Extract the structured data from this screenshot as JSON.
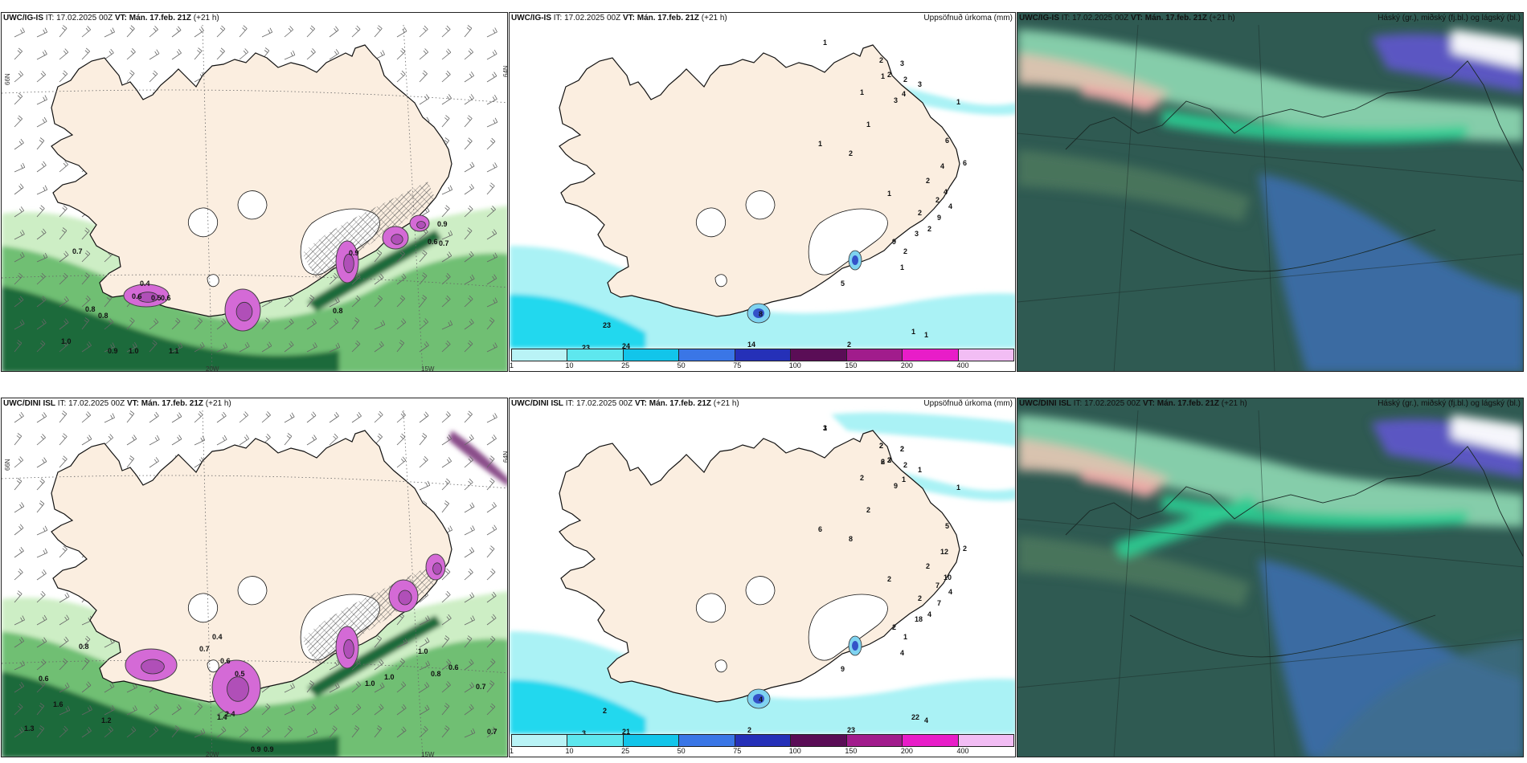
{
  "panels": [
    {
      "id": "top-left",
      "source": "UWC/IG-IS",
      "it_label": "IT: 17.02.2025 00Z",
      "vt_label": "VT: Mán. 17.feb. 21Z",
      "lead_label": "(+21 h)",
      "field_label": "",
      "kind": "wind",
      "values": [
        "0.4",
        "0.6",
        "0.5",
        "0.6",
        "0.8",
        "0.7",
        "0.9",
        "0.8",
        "1.0",
        "0.9",
        "0.7",
        "0.6",
        "1.1",
        "0.8",
        "1.0",
        "0.9"
      ],
      "axis_labels": [
        "20W",
        "15W",
        "66N",
        "64N"
      ]
    },
    {
      "id": "top-center",
      "source": "UWC/IG-IS",
      "it_label": "IT: 17.02.2025 00Z",
      "vt_label": "VT: Mán. 17.feb. 21Z",
      "lead_label": "(+21 h)",
      "field_label": "Uppsöfnuð úrkoma (mm)",
      "kind": "precip",
      "values": [
        "1",
        "2",
        "3",
        "2",
        "1",
        "2",
        "3",
        "4",
        "1",
        "3",
        "1",
        "1",
        "6",
        "1",
        "2",
        "6",
        "4",
        "2",
        "4",
        "1",
        "2",
        "4",
        "2",
        "9",
        "2",
        "3",
        "9",
        "2",
        "1",
        "5",
        "23",
        "14",
        "23",
        "23",
        "24",
        "2",
        "1",
        "1",
        "8"
      ]
    },
    {
      "id": "top-right",
      "source": "UWC/IG-IS",
      "it_label": "IT: 17.02.2025 00Z",
      "vt_label": "VT: Mán. 17.feb. 21Z",
      "lead_label": "(+21 h)",
      "field_label": "Háský (gr.), miðský (fj.bl.) og lágský (bl.)",
      "kind": "clouds"
    },
    {
      "id": "bottom-left",
      "source": "UWC/DINI ISL",
      "it_label": "IT: 17.02.2025 00Z",
      "vt_label": "VT: Mán. 17.feb. 21Z",
      "lead_label": "(+21 h)",
      "field_label": "",
      "kind": "wind",
      "values": [
        "0.8",
        "0.6",
        "0.7",
        "0.4",
        "0.6",
        "1.0",
        "0.8",
        "1.4",
        "1.0",
        "0.6",
        "0.7",
        "1.2",
        "0.9",
        "1.6",
        "2.4",
        "0.9",
        "0.7",
        "1.0",
        "1.3",
        "0.5"
      ],
      "axis_labels": [
        "20W",
        "15W",
        "66N",
        "64N"
      ]
    },
    {
      "id": "bottom-center",
      "source": "UWC/DINI ISL",
      "it_label": "IT: 17.02.2025 00Z",
      "vt_label": "VT: Mán. 17.feb. 21Z",
      "lead_label": "(+21 h)",
      "field_label": "Uppsöfnuð úrkoma (mm)",
      "kind": "precip",
      "values": [
        "1",
        "2",
        "2",
        "2",
        "2",
        "2",
        "1",
        "1",
        "2",
        "9",
        "1",
        "2",
        "5",
        "6",
        "8",
        "2",
        "12",
        "2",
        "10",
        "2",
        "7",
        "4",
        "2",
        "7",
        "4",
        "18",
        "2",
        "1",
        "4",
        "9",
        "2",
        "2",
        "7",
        "3",
        "21",
        "23",
        "22",
        "4",
        "4",
        "3",
        "2",
        "2",
        "3",
        "6"
      ]
    },
    {
      "id": "bottom-right",
      "source": "UWC/DINI ISL",
      "it_label": "IT: 17.02.2025 00Z",
      "vt_label": "VT: Mán. 17.feb. 21Z",
      "lead_label": "(+21 h)",
      "field_label": "Háský (gr.), miðský (fj.bl.) og lágský (bl.)",
      "kind": "clouds"
    }
  ],
  "precip_scale": {
    "ticks": [
      "1",
      "10",
      "25",
      "50",
      "75",
      "100",
      "150",
      "200",
      "400"
    ],
    "colors": [
      "#b9f3f6",
      "#5ee7ee",
      "#12c5ea",
      "#3a76e6",
      "#2530b8",
      "#5a0d56",
      "#a11c8c",
      "#e81dc8",
      "#f2bdf4"
    ]
  },
  "colors": {
    "land": "#fbeee0",
    "coast": "#111111",
    "snow": "#ffffff",
    "precip_light": "#aaf2f5",
    "precip_mid": "#21d8ee",
    "wind_green_light": "#cdeec5",
    "wind_green_mid": "#6fbf73",
    "wind_green_dark": "#1d6b3a",
    "magenta": "#d46ad6",
    "cloud_base": "#2f5a52",
    "cloud_green": "#2ecf93",
    "cloud_blue": "#3d6fb0",
    "cloud_violet": "#5e56c8"
  }
}
